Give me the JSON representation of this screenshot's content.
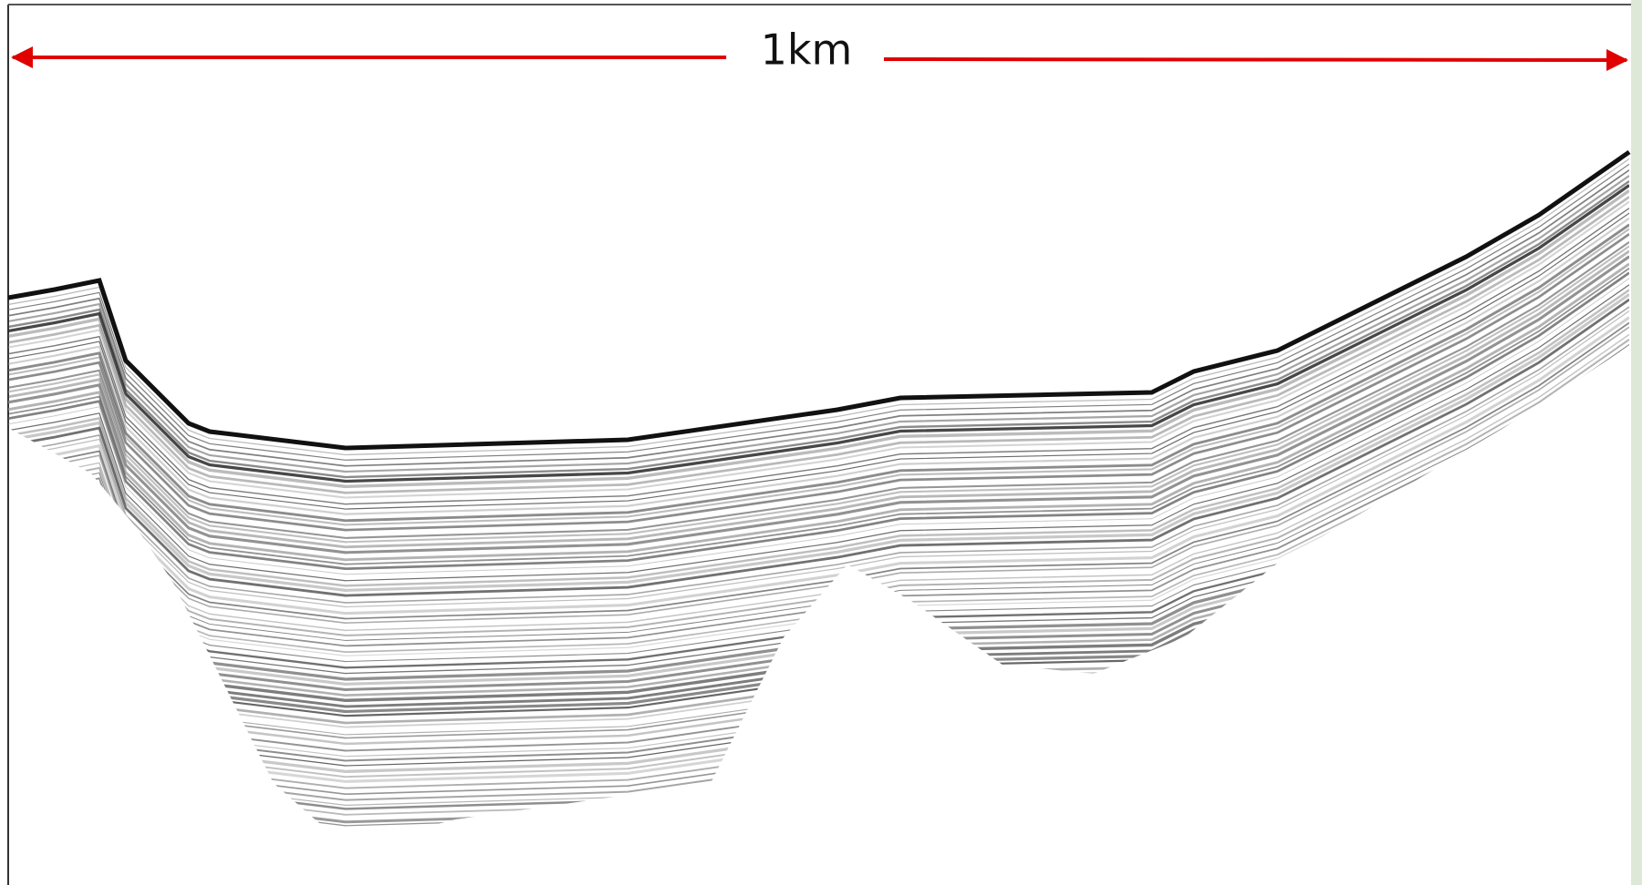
{
  "scale_bar": {
    "label": "1km"
  }
}
